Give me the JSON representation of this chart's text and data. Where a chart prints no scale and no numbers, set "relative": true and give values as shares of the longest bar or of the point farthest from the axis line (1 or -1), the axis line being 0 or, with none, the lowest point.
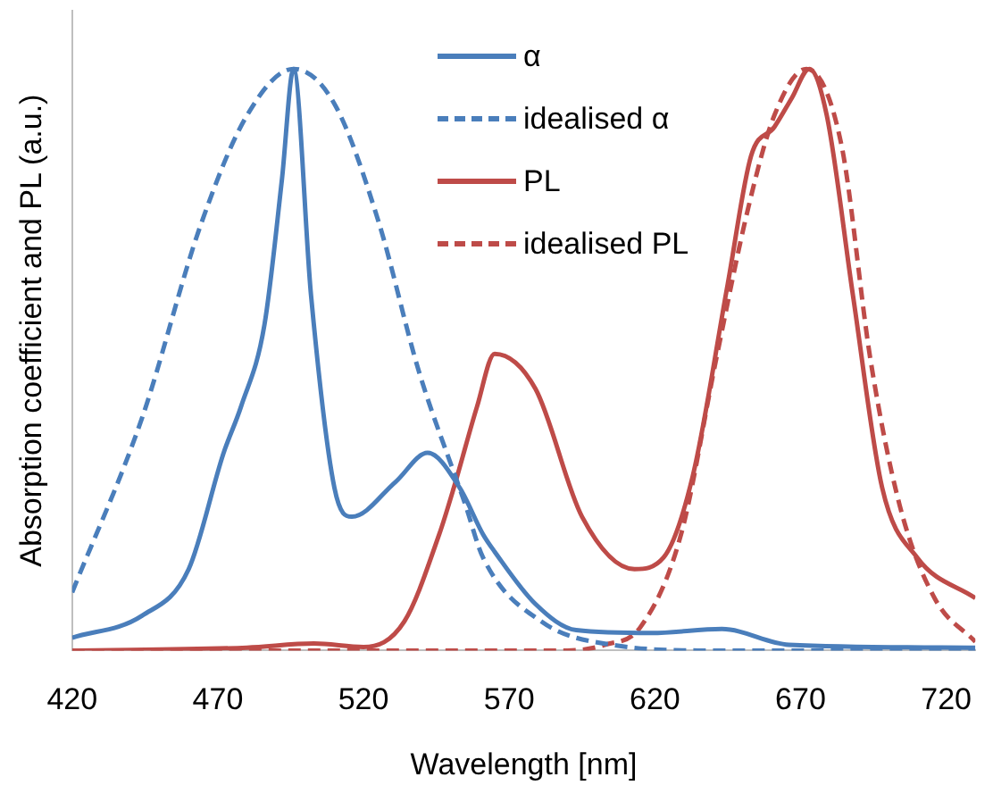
{
  "chart_data": {
    "type": "line",
    "relative": true,
    "xlabel": "Wavelength [nm]",
    "ylabel": "Absorption coefficient and PL (a.u.)",
    "xlim": [
      420,
      730
    ],
    "xticks": [
      420,
      470,
      520,
      570,
      620,
      670,
      720
    ],
    "grid": false,
    "legend": "top right",
    "marker": "none",
    "series": [
      {
        "name": "α",
        "color": "#4a7ebb",
        "line_style": "solid",
        "x": [
          420,
          444,
          460,
          472,
          478,
          486,
          492,
          496,
          502,
          510,
          516,
          531,
          542,
          553,
          561,
          565,
          579,
          593,
          619,
          643,
          666,
          730
        ],
        "values": [
          0.022,
          0.06,
          0.14,
          0.34,
          0.42,
          0.56,
          0.81,
          1,
          0.61,
          0.28,
          0.23,
          0.29,
          0.34,
          0.28,
          0.2,
          0.17,
          0.08,
          0.035,
          0.03,
          0.037,
          0.01,
          0.005
        ]
      },
      {
        "name": "idealised α",
        "color": "#4a7ebb",
        "line_style": "dashed",
        "x": [
          420,
          444,
          464,
          480,
          496,
          510,
          525,
          539,
          555,
          561,
          581,
          605,
          640,
          730
        ],
        "values": [
          0.1,
          0.4,
          0.73,
          0.92,
          1,
          0.94,
          0.74,
          0.48,
          0.25,
          0.16,
          0.05,
          0.01,
          0,
          0
        ]
      },
      {
        "name": "PL",
        "color": "#be4b48",
        "line_style": "solid",
        "x": [
          420,
          480,
          503,
          520,
          534,
          546,
          551,
          559,
          565,
          579,
          595,
          613,
          623,
          633,
          645,
          653,
          661,
          667,
          673,
          679,
          688,
          698,
          710,
          730
        ],
        "values": [
          0,
          0.005,
          0.012,
          0.006,
          0.05,
          0.2,
          0.28,
          0.42,
          0.51,
          0.45,
          0.23,
          0.14,
          0.16,
          0.3,
          0.63,
          0.85,
          0.9,
          0.95,
          1,
          0.92,
          0.61,
          0.28,
          0.16,
          0.09
        ]
      },
      {
        "name": "idealised PL",
        "color": "#be4b48",
        "line_style": "dashed",
        "x": [
          420,
          590,
          603,
          615,
          629,
          641,
          652,
          661,
          672,
          684,
          694,
          704,
          716,
          730
        ],
        "values": [
          0,
          0,
          0.01,
          0.04,
          0.2,
          0.5,
          0.76,
          0.92,
          1,
          0.87,
          0.5,
          0.25,
          0.09,
          0.015
        ]
      }
    ]
  }
}
